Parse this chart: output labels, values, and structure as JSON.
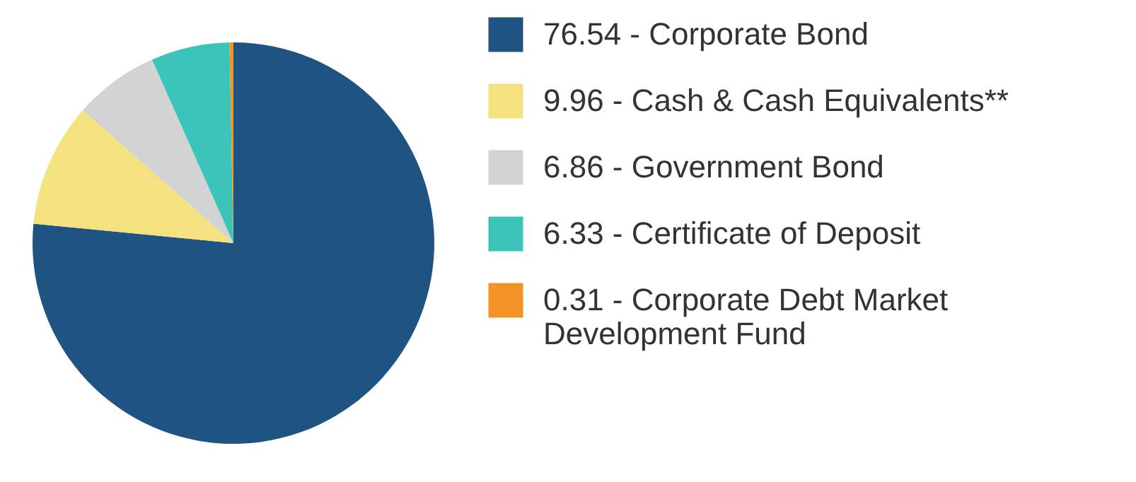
{
  "chart_data": {
    "type": "pie",
    "categories": [
      "76.54 - Corporate Bond",
      "9.96 - Cash & Cash Equivalents**",
      "6.86 - Government Bond",
      "6.33 - Certificate of Deposit",
      "0.31 - Corporate Debt Market Development Fund"
    ],
    "values": [
      76.54,
      9.96,
      6.86,
      6.33,
      0.31
    ],
    "colors": [
      "#1f5482",
      "#f3e27e",
      "#d3d3d3",
      "#3bc4b9",
      "#f39325"
    ],
    "legend": "right"
  }
}
